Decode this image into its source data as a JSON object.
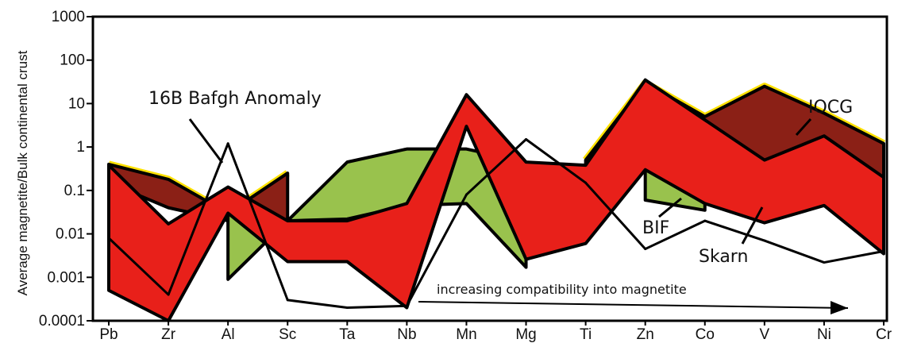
{
  "chart_data": {
    "type": "area",
    "ylabel": "Average magnetite/Bulk continental crust",
    "ylim": [
      0.0001,
      1000
    ],
    "yscale": "log",
    "y_ticks": [
      "0.0001",
      "0.001",
      "0.01",
      "0.1",
      "1",
      "10",
      "100",
      "1000"
    ],
    "categories": [
      "Pb",
      "Zr",
      "Al",
      "Sc",
      "Ta",
      "Nb",
      "Mn",
      "Mg",
      "Ti",
      "Zn",
      "Co",
      "V",
      "Ni",
      "Cr"
    ],
    "series": [
      {
        "name": "IOCG",
        "upper": [
          0.4,
          0.18,
          0.03,
          0.25,
          null,
          null,
          null,
          null,
          0.5,
          30,
          5,
          25,
          6,
          1.2
        ],
        "lower": [
          0.15,
          0.04,
          0.02,
          0.02,
          null,
          null,
          null,
          null,
          0.2,
          10,
          4,
          0.5,
          1.5,
          0.15
        ],
        "color": "#8b2016",
        "edge": "#ffe100"
      },
      {
        "name": "BIF",
        "upper": [
          null,
          null,
          0.1,
          0.02,
          0.45,
          0.9,
          0.9,
          0.45,
          null,
          5,
          0.6,
          null,
          null,
          null
        ],
        "lower": [
          null,
          null,
          0.0009,
          0.02,
          0.022,
          0.045,
          0.05,
          0.0017,
          null,
          0.06,
          0.035,
          null,
          null,
          null
        ],
        "color": "#99c24d"
      },
      {
        "name": "Skarn",
        "upper": [
          0.38,
          0.017,
          0.12,
          0.02,
          0.02,
          0.05,
          16,
          0.45,
          0.38,
          35,
          4.2,
          0.5,
          1.8,
          0.2
        ],
        "lower": [
          0.0005,
          0.0001,
          0.03,
          0.0023,
          0.0023,
          0.0002,
          3,
          0.0026,
          0.006,
          0.3,
          0.05,
          0.018,
          0.045,
          0.0035
        ],
        "color": "#e8201a"
      },
      {
        "name": "16B Bafgh Anomaly",
        "values": [
          0.008,
          0.0004,
          1.2,
          0.0003,
          0.0002,
          0.00022,
          0.08,
          1.5,
          0.15,
          0.0045,
          0.02,
          0.007,
          0.0022,
          0.004
        ],
        "color": "#000000"
      }
    ],
    "annotations": {
      "iocg": "IOCG",
      "bafgh": "16B Bafgh Anomaly",
      "bif": "BIF",
      "skarn": "Skarn",
      "compat": "increasing compatibility into magnetite"
    }
  }
}
